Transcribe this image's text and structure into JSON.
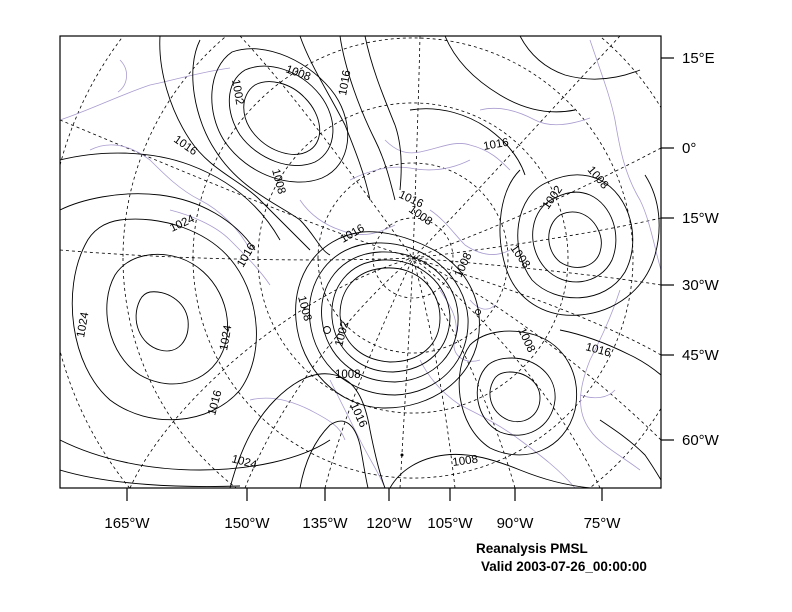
{
  "map": {
    "bottom_axis_labels": [
      "165°W",
      "150°W",
      "135°W",
      "120°W",
      "105°W",
      "90°W",
      "75°W"
    ],
    "right_axis_labels": [
      "15°E",
      "0°",
      "15°W",
      "30°W",
      "45°W",
      "60°W"
    ],
    "contour_labels": [
      "1008",
      "1002",
      "1016",
      "1016",
      "1008",
      "1016",
      "1016",
      "1008",
      "1024",
      "1016",
      "1002",
      "1008",
      "1016",
      "1008",
      "1008",
      "1002",
      "1024",
      "1008",
      "1008",
      "1008",
      "1016",
      "1024",
      "1016",
      "1016",
      "1008",
      "1024"
    ],
    "colors": {
      "contours": "#000000",
      "coastlines": "#a99ccf",
      "gridlines": "#000000",
      "background": "#ffffff"
    },
    "title_line1": "Reanalysis PMSL",
    "title_line2": "Valid 2003-07-26_00:00:00"
  }
}
